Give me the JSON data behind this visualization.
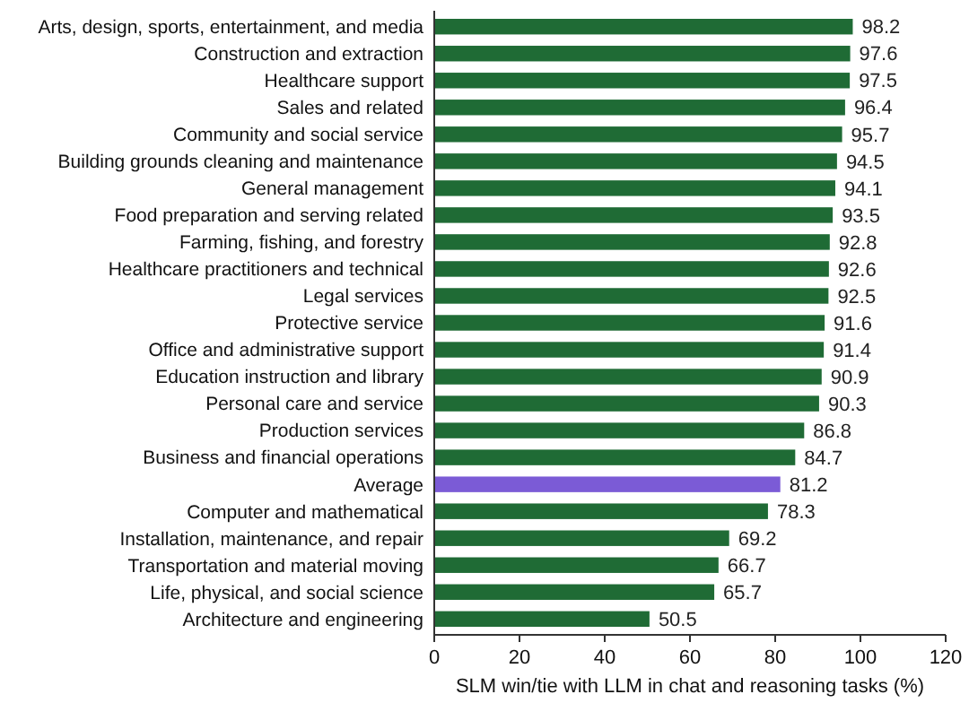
{
  "chart_data": {
    "type": "bar",
    "orientation": "horizontal",
    "xlabel": "SLM win/tie with LLM in chat and reasoning tasks (%)",
    "categories": [
      "Arts, design, sports, entertainment, and media",
      "Construction and extraction",
      "Healthcare support",
      "Sales and related",
      "Community and social service",
      "Building grounds cleaning and maintenance",
      "General management",
      "Food preparation and serving related",
      "Farming, fishing, and forestry",
      "Healthcare practitioners and technical",
      "Legal services",
      "Protective service",
      "Office and administrative support",
      "Education instruction and library",
      "Personal care and service",
      "Production services",
      "Business and financial operations",
      "Average",
      "Computer and mathematical",
      "Installation, maintenance, and repair",
      "Transportation and material moving",
      "Life, physical, and social science",
      "Architecture and engineering"
    ],
    "values": [
      98.2,
      97.6,
      97.5,
      96.4,
      95.7,
      94.5,
      94.1,
      93.5,
      92.8,
      92.6,
      92.5,
      91.6,
      91.4,
      90.9,
      90.3,
      86.8,
      84.7,
      81.2,
      78.3,
      69.2,
      66.7,
      65.7,
      50.5
    ],
    "colors": [
      "#1f6b35",
      "#1f6b35",
      "#1f6b35",
      "#1f6b35",
      "#1f6b35",
      "#1f6b35",
      "#1f6b35",
      "#1f6b35",
      "#1f6b35",
      "#1f6b35",
      "#1f6b35",
      "#1f6b35",
      "#1f6b35",
      "#1f6b35",
      "#1f6b35",
      "#1f6b35",
      "#1f6b35",
      "#7b5bd6",
      "#1f6b35",
      "#1f6b35",
      "#1f6b35",
      "#1f6b35",
      "#1f6b35"
    ],
    "xlim": [
      0,
      120
    ],
    "xticks": [
      0,
      20,
      40,
      60,
      80,
      100,
      120
    ],
    "data_labels": true,
    "grid": false
  }
}
